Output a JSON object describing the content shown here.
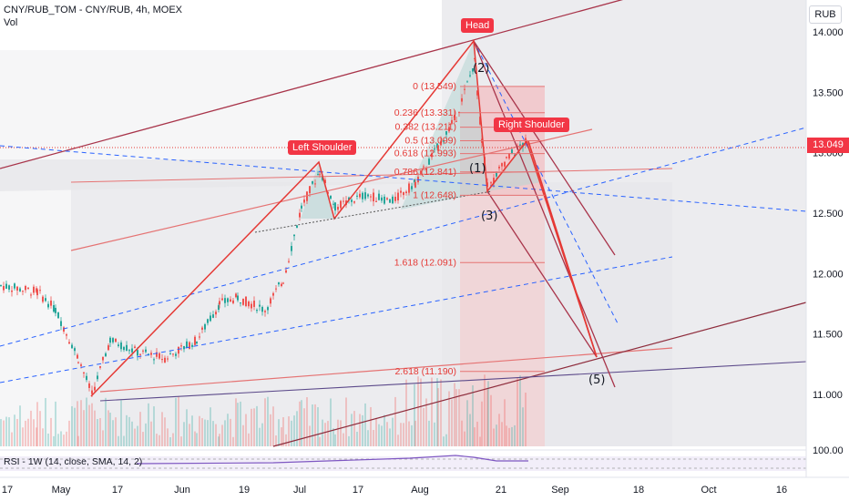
{
  "header": {
    "symbol_line": "CNY/RUB_TOM - CNY/RUB, 4h, MOEX",
    "volume_label": "Vol",
    "unit": "RUB",
    "current_price": "13.049"
  },
  "indicator": {
    "rsi_label": "RSI - 1W (14, close, SMA, 14, 2)",
    "rsi_scale_label": "100.00"
  },
  "callouts": {
    "head": "Head",
    "left_shoulder": "Left Shoulder",
    "right_shoulder": "Right Shoulder"
  },
  "fib_levels": [
    {
      "label": "0 (13.549)",
      "value": 13.549
    },
    {
      "label": "0.236 (13.331)",
      "value": 13.331
    },
    {
      "label": "0.382 (13.211)",
      "value": 13.211
    },
    {
      "label": "0.5 (13.099)",
      "value": 13.099
    },
    {
      "label": "0.618 (12.993)",
      "value": 12.993
    },
    {
      "label": "0.786 (12.841)",
      "value": 12.841
    },
    {
      "label": "1 (12.648)",
      "value": 12.648
    },
    {
      "label": "1.618 (12.091)",
      "value": 12.091
    },
    {
      "label": "2.618 (11.190)",
      "value": 11.19
    }
  ],
  "wave_labels": [
    "(2)",
    "(1)",
    "(3)",
    "(5)"
  ],
  "price_axis": [
    "14.000",
    "13.500",
    "13.000",
    "12.500",
    "12.000",
    "11.500",
    "11.000"
  ],
  "time_axis": [
    "17",
    "May",
    "17",
    "Jun",
    "19",
    "Jul",
    "17",
    "Aug",
    "21",
    "Sep",
    "18",
    "Oct",
    "16"
  ],
  "colors": {
    "up": "#26a69a",
    "down": "#ef5350",
    "accent": "#f23645",
    "trend": "#8e2c3c",
    "blue_dashed": "#2962ff"
  }
}
